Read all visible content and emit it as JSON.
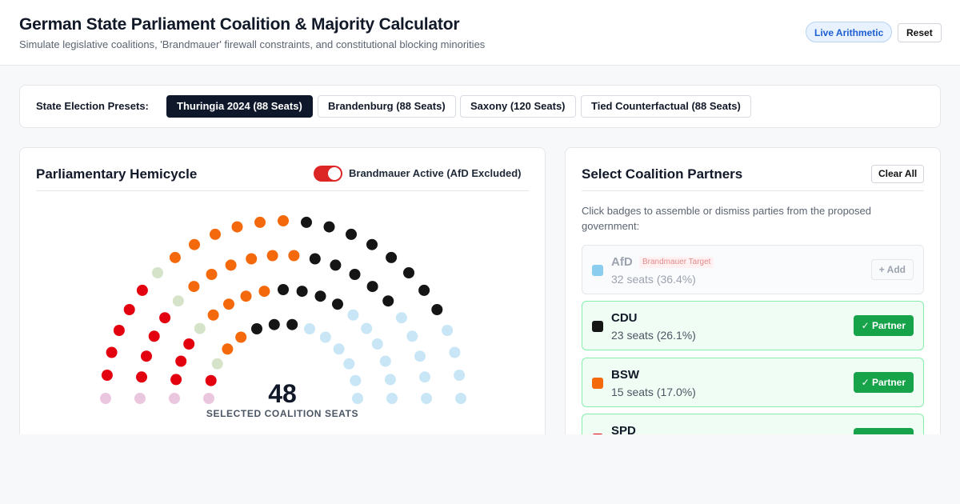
{
  "header": {
    "title": "German State Parliament Coalition & Majority Calculator",
    "subtitle": "Simulate legislative coalitions, 'Brandmauer' firewall constraints, and constitutional blocking minorities",
    "live_label": "Live Arithmetic",
    "reset_label": "Reset"
  },
  "presets": {
    "label": "State Election Presets:",
    "items": [
      {
        "label": "Thuringia 2024 (88 Seats)",
        "active": true
      },
      {
        "label": "Brandenburg (88 Seats)",
        "active": false
      },
      {
        "label": "Saxony (120 Seats)",
        "active": false
      },
      {
        "label": "Tied Counterfactual (88 Seats)",
        "active": false
      }
    ]
  },
  "hemicycle": {
    "title": "Parliamentary Hemicycle",
    "toggle_label": "Brandmauer Active (AfD Excluded)",
    "toggle_on": true,
    "selected_seats": "48",
    "selected_label": "SELECTED COALITION SEATS",
    "colors": {
      "gruene": "#ebc7df",
      "spd": "#e3000f",
      "linke": "#d5e4c8",
      "bsw": "#f4690b",
      "cdu": "#151515",
      "afd": "#c8e6f5"
    }
  },
  "coalition": {
    "title": "Select Coalition Partners",
    "clear_label": "Clear All",
    "hint": "Click badges to assemble or dismiss parties from the proposed government:",
    "parties": [
      {
        "name": "AfD",
        "tag": "Brandmauer Target",
        "seats": "32 seats (36.4%)",
        "color": "#7dc8ec",
        "button": "+ Add",
        "selected": false
      },
      {
        "name": "CDU",
        "tag": "",
        "seats": "23 seats (26.1%)",
        "color": "#151515",
        "button": "✓ Partner",
        "selected": true
      },
      {
        "name": "BSW",
        "tag": "",
        "seats": "15 seats (17.0%)",
        "color": "#f4690b",
        "button": "✓ Partner",
        "selected": true
      },
      {
        "name": "SPD",
        "tag": "",
        "seats": "",
        "color": "#e3000f",
        "button": "✓ Partner",
        "selected": true
      }
    ]
  }
}
